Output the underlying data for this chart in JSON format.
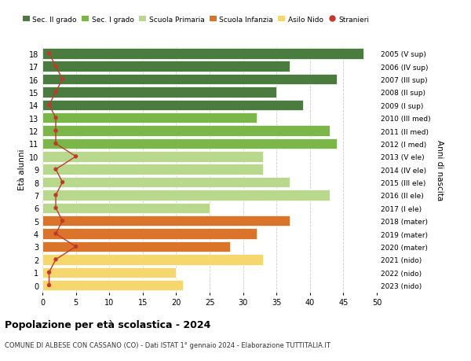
{
  "ages": [
    18,
    17,
    16,
    15,
    14,
    13,
    12,
    11,
    10,
    9,
    8,
    7,
    6,
    5,
    4,
    3,
    2,
    1,
    0
  ],
  "right_labels": [
    "2005 (V sup)",
    "2006 (IV sup)",
    "2007 (III sup)",
    "2008 (II sup)",
    "2009 (I sup)",
    "2010 (III med)",
    "2011 (II med)",
    "2012 (I med)",
    "2013 (V ele)",
    "2014 (IV ele)",
    "2015 (III ele)",
    "2016 (II ele)",
    "2017 (I ele)",
    "2018 (mater)",
    "2019 (mater)",
    "2020 (mater)",
    "2021 (nido)",
    "2022 (nido)",
    "2023 (nido)"
  ],
  "bar_values": [
    48,
    37,
    44,
    35,
    39,
    32,
    43,
    44,
    33,
    33,
    37,
    43,
    25,
    37,
    32,
    28,
    33,
    20,
    21
  ],
  "stranieri_values": [
    1,
    2,
    3,
    2,
    1,
    2,
    2,
    2,
    5,
    2,
    3,
    2,
    2,
    3,
    2,
    5,
    2,
    1,
    1
  ],
  "bar_colors": [
    "#4a7c3f",
    "#4a7c3f",
    "#4a7c3f",
    "#4a7c3f",
    "#4a7c3f",
    "#7ab648",
    "#7ab648",
    "#7ab648",
    "#b8d98d",
    "#b8d98d",
    "#b8d98d",
    "#b8d98d",
    "#b8d98d",
    "#d9742a",
    "#d9742a",
    "#d9742a",
    "#f5d76e",
    "#f5d76e",
    "#f5d76e"
  ],
  "legend_labels": [
    "Sec. II grado",
    "Sec. I grado",
    "Scuola Primaria",
    "Scuola Infanzia",
    "Asilo Nido",
    "Stranieri"
  ],
  "legend_colors": [
    "#4a7c3f",
    "#7ab648",
    "#b8d98d",
    "#d9742a",
    "#f5d76e",
    "#c0392b"
  ],
  "stranieri_color": "#c0392b",
  "ylabel_left": "Età alunni",
  "ylabel_right": "Anni di nascita",
  "title": "Popolazione per età scolastica - 2024",
  "subtitle": "COMUNE DI ALBESE CON CASSANO (CO) - Dati ISTAT 1° gennaio 2024 - Elaborazione TUTTITALIA.IT",
  "xlim": [
    0,
    50
  ],
  "xticks": [
    0,
    5,
    10,
    15,
    20,
    25,
    30,
    35,
    40,
    45,
    50
  ],
  "background_color": "#ffffff",
  "grid_color": "#cccccc"
}
